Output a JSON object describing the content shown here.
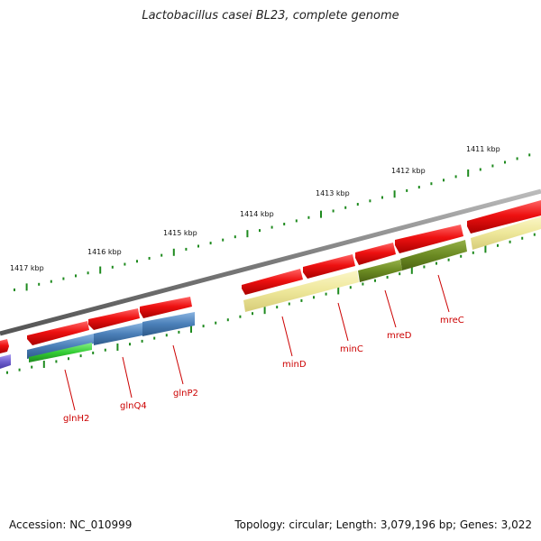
{
  "title": "Lactobacillus casei BL23, complete genome",
  "footer": {
    "accession": "Accession: NC_010999",
    "stats": "Topology: circular; Length: 3,079,196 bp; Genes: 3,022"
  },
  "colors": {
    "backbone": "#7a7a7a",
    "tick": "#1e8a1e",
    "cds_red": "#ee1111",
    "blue": "#4a7fb8",
    "khaki": "#eee79a",
    "olive": "#6b8a22",
    "green": "#33cc33",
    "purple": "#7060d0",
    "label": "#cc0000"
  },
  "ruler_labels": [
    "1417 kbp",
    "1416 kbp",
    "1415 kbp",
    "1414 kbp",
    "1413 kbp",
    "1412 kbp",
    "1411 kbp"
  ],
  "gene_labels": [
    "glnH2",
    "glnQ4",
    "glnP2",
    "minD",
    "minC",
    "mreD",
    "mreC"
  ]
}
